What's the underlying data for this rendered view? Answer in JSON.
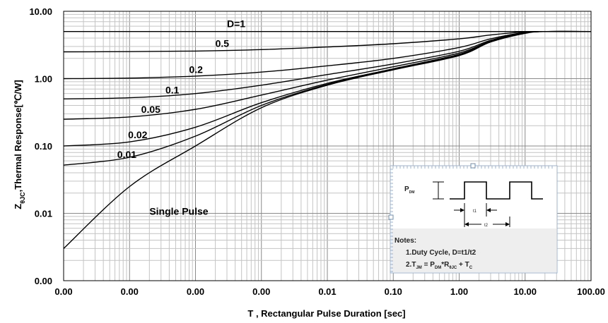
{
  "chart_data": {
    "type": "line",
    "title": "",
    "xlabel": "T , Rectangular Pulse Duration [sec]",
    "ylabel": "ZθJC,Thermal Response[℃/W]",
    "ylabel_parts": {
      "main": "Z",
      "sub": "θJC",
      "rest": ",Thermal Response[℃/W]"
    },
    "x_scale": "log",
    "y_scale": "log",
    "xlim": [
      1e-06,
      100
    ],
    "ylim": [
      0.001,
      10
    ],
    "grid": true,
    "x_tick_values": [
      1e-06,
      1e-05,
      0.0001,
      0.001,
      0.01,
      0.1,
      1,
      10,
      100
    ],
    "x_tick_labels": [
      "0.00",
      "0.00",
      "0.00",
      "0.00",
      "0.01",
      "0.10",
      "1.00",
      "10.00",
      "100.00"
    ],
    "y_tick_values": [
      0.001,
      0.01,
      0.1,
      1,
      10
    ],
    "y_tick_labels": [
      "0.00",
      "0.01",
      "0.10",
      "1.00",
      "10.00"
    ],
    "series": [
      {
        "name": "D=1",
        "points": [
          [
            1e-06,
            5.0
          ],
          [
            100,
            5.0
          ]
        ]
      },
      {
        "name": "0.5",
        "points": [
          [
            1e-06,
            2.5
          ],
          [
            1e-05,
            2.52
          ],
          [
            0.0001,
            2.57
          ],
          [
            0.001,
            2.7
          ],
          [
            0.01,
            2.95
          ],
          [
            0.1,
            3.3
          ],
          [
            1,
            3.9
          ],
          [
            3,
            4.45
          ],
          [
            10,
            4.95
          ],
          [
            20,
            5.0
          ],
          [
            100,
            5.0
          ]
        ]
      },
      {
        "name": "0.2",
        "points": [
          [
            1e-06,
            1.0
          ],
          [
            1e-05,
            1.02
          ],
          [
            0.0001,
            1.09
          ],
          [
            0.001,
            1.25
          ],
          [
            0.01,
            1.55
          ],
          [
            0.1,
            2.0
          ],
          [
            1,
            2.9
          ],
          [
            3,
            3.9
          ],
          [
            10,
            4.85
          ],
          [
            20,
            5.0
          ],
          [
            100,
            5.0
          ]
        ]
      },
      {
        "name": "0.1",
        "points": [
          [
            1e-06,
            0.5
          ],
          [
            1e-05,
            0.52
          ],
          [
            0.0001,
            0.6
          ],
          [
            0.001,
            0.8
          ],
          [
            0.01,
            1.15
          ],
          [
            0.1,
            1.65
          ],
          [
            1,
            2.55
          ],
          [
            3,
            3.7
          ],
          [
            10,
            4.8
          ],
          [
            20,
            5.0
          ],
          [
            100,
            5.0
          ]
        ]
      },
      {
        "name": "0.05",
        "points": [
          [
            1e-06,
            0.25
          ],
          [
            1e-05,
            0.27
          ],
          [
            0.0001,
            0.35
          ],
          [
            0.001,
            0.57
          ],
          [
            0.01,
            0.95
          ],
          [
            0.1,
            1.5
          ],
          [
            1,
            2.4
          ],
          [
            3,
            3.6
          ],
          [
            10,
            4.75
          ],
          [
            20,
            5.0
          ],
          [
            100,
            5.0
          ]
        ]
      },
      {
        "name": "0.02",
        "points": [
          [
            1e-06,
            0.1
          ],
          [
            1e-05,
            0.115
          ],
          [
            0.0001,
            0.19
          ],
          [
            0.001,
            0.44
          ],
          [
            0.01,
            0.85
          ],
          [
            0.1,
            1.4
          ],
          [
            1,
            2.3
          ],
          [
            3,
            3.55
          ],
          [
            10,
            4.75
          ],
          [
            20,
            5.0
          ],
          [
            100,
            5.0
          ]
        ]
      },
      {
        "name": "0.01",
        "points": [
          [
            1e-06,
            0.052
          ],
          [
            1e-05,
            0.068
          ],
          [
            0.0001,
            0.14
          ],
          [
            0.001,
            0.4
          ],
          [
            0.01,
            0.82
          ],
          [
            0.1,
            1.37
          ],
          [
            1,
            2.25
          ],
          [
            3,
            3.5
          ],
          [
            10,
            4.75
          ],
          [
            20,
            5.0
          ],
          [
            100,
            5.0
          ]
        ]
      },
      {
        "name": "Single Pulse",
        "points": [
          [
            1e-06,
            0.003
          ],
          [
            1e-05,
            0.025
          ],
          [
            0.0001,
            0.1
          ],
          [
            0.001,
            0.37
          ],
          [
            0.01,
            0.8
          ],
          [
            0.1,
            1.35
          ],
          [
            1,
            2.2
          ],
          [
            3,
            3.5
          ],
          [
            10,
            4.7
          ],
          [
            20,
            5.0
          ],
          [
            100,
            5.0
          ]
        ]
      }
    ],
    "annotations": [
      {
        "text": "D=1",
        "x": 0.0003,
        "y": 5.8
      },
      {
        "text": "0.5",
        "x": 0.0002,
        "y": 2.95
      },
      {
        "text": "0.2",
        "x": 8e-05,
        "y": 1.22
      },
      {
        "text": "0.1",
        "x": 3.5e-05,
        "y": 0.6
      },
      {
        "text": "0.05",
        "x": 1.5e-05,
        "y": 0.31
      },
      {
        "text": "0.02",
        "x": 9.5e-06,
        "y": 0.13
      },
      {
        "text": "0.01",
        "x": 6.5e-06,
        "y": 0.066
      },
      {
        "text": "Single Pulse",
        "x": 2e-05,
        "y": 0.0095
      }
    ],
    "inset": {
      "pdm_label": "P",
      "pdm_sub": "DM",
      "t1_label": "t1",
      "t2_label": "t2",
      "notes_title": "Notes:",
      "note1": "1.Duty  Cycle, D=t1/t2",
      "note2": {
        "a": "2.T",
        "a_sub": "JM",
        "b": " = P",
        "b_sub": "DM",
        "c": "*R",
        "c_sub": "θJC",
        "d": " + T",
        "d_sub": "C"
      }
    }
  }
}
